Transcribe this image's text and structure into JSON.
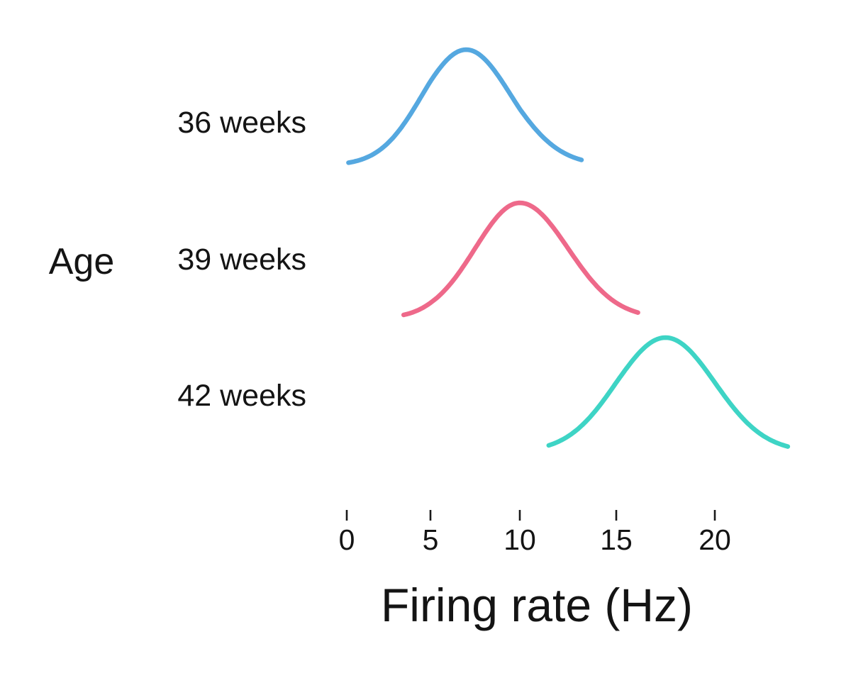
{
  "figure": {
    "background": "#ffffff",
    "text_color": "#141414"
  },
  "chart_data": {
    "type": "line",
    "subtype": "ridgeline-gaussian-densities",
    "title": "",
    "xlabel": "Firing rate (Hz)",
    "ylabel": "Age",
    "x_ticks": [
      "0",
      "5",
      "10",
      "15",
      "20"
    ],
    "x_tick_values": [
      0,
      5,
      10,
      15,
      20
    ],
    "xlim": [
      -0.2,
      23.8
    ],
    "grid": false,
    "legend_position": "left-row-labels",
    "series": [
      {
        "name": "36 weeks",
        "mean": 7,
        "sd": 2.5,
        "x_range": [
          0.1,
          13.2
        ],
        "color": "#55A8E0"
      },
      {
        "name": "39 weeks",
        "mean": 10,
        "sd": 2.5,
        "x_range": [
          3.4,
          16.1
        ],
        "color": "#EE698A"
      },
      {
        "name": "42 weeks",
        "mean": 17.5,
        "sd": 2.5,
        "x_range": [
          11.5,
          23.7
        ],
        "color": "#3ED4C5"
      }
    ]
  }
}
